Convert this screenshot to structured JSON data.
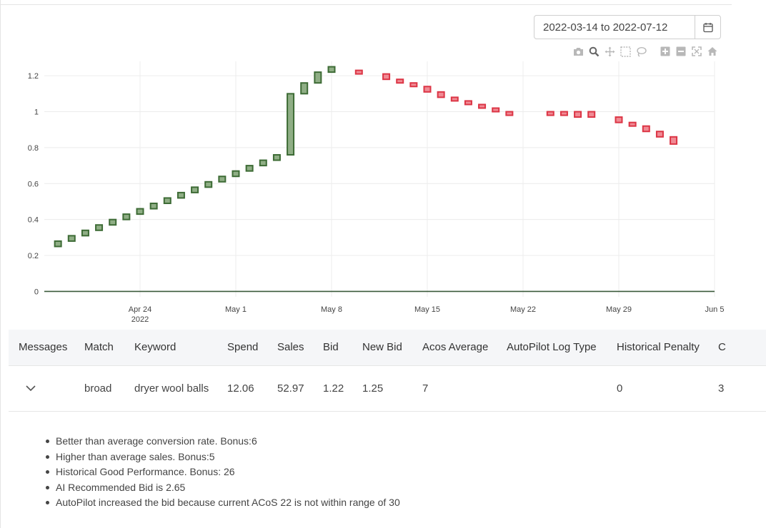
{
  "date_range": {
    "value": "2022-03-14 to 2022-07-12",
    "icon": "calendar-icon"
  },
  "modebar": {
    "icons": [
      "camera-icon",
      "zoom-icon",
      "pan-icon",
      "box-select-icon",
      "lasso-icon",
      "zoom-in-icon",
      "zoom-out-icon",
      "autoscale-icon",
      "reset-axes-icon"
    ]
  },
  "chart_data": {
    "type": "candlestick",
    "title": "",
    "xlabel": "",
    "ylabel": "",
    "ylim": [
      -0.03,
      1.28
    ],
    "grid": true,
    "x_range": [
      "2022-04-17",
      "2022-06-05"
    ],
    "x_ticks": [
      {
        "date": "2022-04-24",
        "label": "Apr 24",
        "sublabel": "2022"
      },
      {
        "date": "2022-05-01",
        "label": "May 1",
        "sublabel": ""
      },
      {
        "date": "2022-05-08",
        "label": "May 8",
        "sublabel": ""
      },
      {
        "date": "2022-05-15",
        "label": "May 15",
        "sublabel": ""
      },
      {
        "date": "2022-05-22",
        "label": "May 22",
        "sublabel": ""
      },
      {
        "date": "2022-05-29",
        "label": "May 29",
        "sublabel": ""
      },
      {
        "date": "2022-06-05",
        "label": "Jun 5",
        "sublabel": ""
      }
    ],
    "y_ticks": [
      "0",
      "0.2",
      "0.4",
      "0.6",
      "0.8",
      "1",
      "1.2"
    ],
    "colors": {
      "increasing_fill": "#8fae85",
      "increasing_line": "#3d6b35",
      "decreasing_fill": "#f08a94",
      "decreasing_line": "#dc3545",
      "zero_line": "#3a5a3a"
    },
    "candles": [
      {
        "date": "2022-04-18",
        "open": 0.25,
        "close": 0.28
      },
      {
        "date": "2022-04-19",
        "open": 0.28,
        "close": 0.31
      },
      {
        "date": "2022-04-20",
        "open": 0.31,
        "close": 0.34
      },
      {
        "date": "2022-04-21",
        "open": 0.34,
        "close": 0.37
      },
      {
        "date": "2022-04-22",
        "open": 0.37,
        "close": 0.4
      },
      {
        "date": "2022-04-23",
        "open": 0.4,
        "close": 0.43
      },
      {
        "date": "2022-04-24",
        "open": 0.43,
        "close": 0.46
      },
      {
        "date": "2022-04-25",
        "open": 0.46,
        "close": 0.49
      },
      {
        "date": "2022-04-26",
        "open": 0.49,
        "close": 0.52
      },
      {
        "date": "2022-04-27",
        "open": 0.52,
        "close": 0.55
      },
      {
        "date": "2022-04-28",
        "open": 0.55,
        "close": 0.58
      },
      {
        "date": "2022-04-29",
        "open": 0.58,
        "close": 0.61
      },
      {
        "date": "2022-04-30",
        "open": 0.61,
        "close": 0.64
      },
      {
        "date": "2022-05-01",
        "open": 0.64,
        "close": 0.67
      },
      {
        "date": "2022-05-02",
        "open": 0.67,
        "close": 0.7
      },
      {
        "date": "2022-05-03",
        "open": 0.7,
        "close": 0.73
      },
      {
        "date": "2022-05-04",
        "open": 0.73,
        "close": 0.76
      },
      {
        "date": "2022-05-05",
        "open": 0.76,
        "close": 1.1
      },
      {
        "date": "2022-05-06",
        "open": 1.1,
        "close": 1.16
      },
      {
        "date": "2022-05-07",
        "open": 1.16,
        "close": 1.22
      },
      {
        "date": "2022-05-08",
        "open": 1.22,
        "close": 1.25
      },
      {
        "date": "2022-05-10",
        "open": 1.23,
        "close": 1.21
      },
      {
        "date": "2022-05-12",
        "open": 1.21,
        "close": 1.18
      },
      {
        "date": "2022-05-13",
        "open": 1.18,
        "close": 1.16
      },
      {
        "date": "2022-05-14",
        "open": 1.16,
        "close": 1.14
      },
      {
        "date": "2022-05-15",
        "open": 1.14,
        "close": 1.11
      },
      {
        "date": "2022-05-16",
        "open": 1.11,
        "close": 1.08
      },
      {
        "date": "2022-05-17",
        "open": 1.08,
        "close": 1.06
      },
      {
        "date": "2022-05-18",
        "open": 1.06,
        "close": 1.04
      },
      {
        "date": "2022-05-19",
        "open": 1.04,
        "close": 1.02
      },
      {
        "date": "2022-05-20",
        "open": 1.02,
        "close": 1.0
      },
      {
        "date": "2022-05-21",
        "open": 1.0,
        "close": 0.98
      },
      {
        "date": "2022-05-24",
        "open": 1.0,
        "close": 0.98
      },
      {
        "date": "2022-05-25",
        "open": 1.0,
        "close": 0.98
      },
      {
        "date": "2022-05-26",
        "open": 1.0,
        "close": 0.97
      },
      {
        "date": "2022-05-27",
        "open": 1.0,
        "close": 0.97
      },
      {
        "date": "2022-05-29",
        "open": 0.97,
        "close": 0.94
      },
      {
        "date": "2022-05-30",
        "open": 0.94,
        "close": 0.92
      },
      {
        "date": "2022-05-31",
        "open": 0.92,
        "close": 0.89
      },
      {
        "date": "2022-06-01",
        "open": 0.89,
        "close": 0.86
      },
      {
        "date": "2022-06-02",
        "open": 0.86,
        "close": 0.82
      }
    ]
  },
  "table": {
    "headers": [
      "Messages",
      "Match",
      "Keyword",
      "Spend",
      "Sales",
      "Bid",
      "New Bid",
      "Acos Average",
      "AutoPilot Log Type",
      "Historical Penalty",
      "C"
    ],
    "row": {
      "expander_icon": "chevron-down-icon",
      "match": "broad",
      "keyword": "dryer wool balls",
      "spend": "12.06",
      "sales": "52.97",
      "bid": "1.22",
      "new_bid": "1.25",
      "acos_average": "7",
      "autopilot_log_type": "",
      "historical_penalty": "0",
      "c": "3"
    }
  },
  "messages": [
    "Better than average conversion rate. Bonus:6",
    "Higher than average sales. Bonus:5",
    "Historical Good Performance. Bonus: 26",
    "AI Recommended Bid is 2.65",
    "AutoPilot increased the bid because current ACoS 22 is not within range of 30"
  ]
}
